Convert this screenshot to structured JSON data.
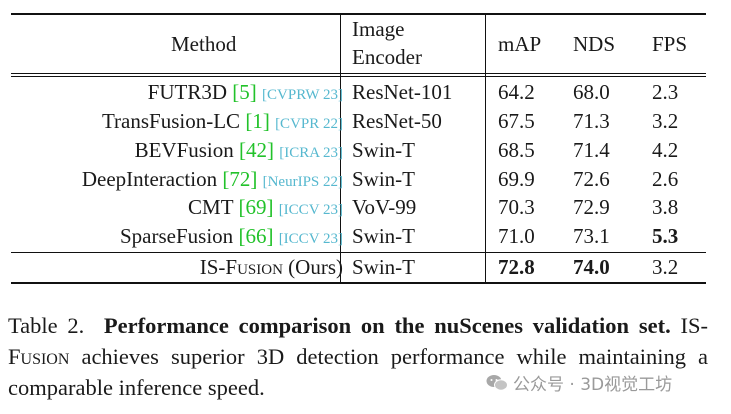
{
  "table": {
    "headers": {
      "method": "Method",
      "encoder_line1": "Image",
      "encoder_line2": "Encoder",
      "map": "mAP",
      "nds": "NDS",
      "fps": "FPS"
    },
    "rows": [
      {
        "name": "FUTR3D",
        "ref": "5",
        "venue": "[CVPRW 23]",
        "encoder": "ResNet-101",
        "map": "64.2",
        "nds": "68.0",
        "fps": "2.3"
      },
      {
        "name": "TransFusion-LC",
        "ref": "1",
        "venue": "[CVPR 22]",
        "encoder": "ResNet-50",
        "map": "67.5",
        "nds": "71.3",
        "fps": "3.2"
      },
      {
        "name": "BEVFusion",
        "ref": "42",
        "venue": "[ICRA 23]",
        "encoder": "Swin-T",
        "map": "68.5",
        "nds": "71.4",
        "fps": "4.2"
      },
      {
        "name": "DeepInteraction",
        "ref": "72",
        "venue": "[NeurIPS 22]",
        "encoder": "Swin-T",
        "map": "69.9",
        "nds": "72.6",
        "fps": "2.6"
      },
      {
        "name": "CMT",
        "ref": "69",
        "venue": "[ICCV 23]",
        "encoder": "VoV-99",
        "map": "70.3",
        "nds": "72.9",
        "fps": "3.8"
      },
      {
        "name": "SparseFusion",
        "ref": "66",
        "venue": "[ICCV 23]",
        "encoder": "Swin-T",
        "map": "71.0",
        "nds": "73.1",
        "fps": "5.3"
      }
    ],
    "ours": {
      "name_prefix": "IS-F",
      "name_rest": "usion",
      "suffix": "(Ours)",
      "encoder": "Swin-T",
      "map": "72.8",
      "nds": "74.0",
      "fps": "3.2"
    }
  },
  "caption": {
    "label": "Table 2.",
    "bold": "Performance comparison on the nuScenes validation set.",
    "name_prefix": "IS-F",
    "name_rest": "usion",
    "text": "achieves superior 3D detection performance while maintaining a comparable inference speed."
  },
  "watermark": {
    "text": "公众号 · 3D视觉工坊",
    "icon": "wechat-icon"
  },
  "colors": {
    "citation": "#22c22a",
    "venue": "#56b8cf"
  }
}
